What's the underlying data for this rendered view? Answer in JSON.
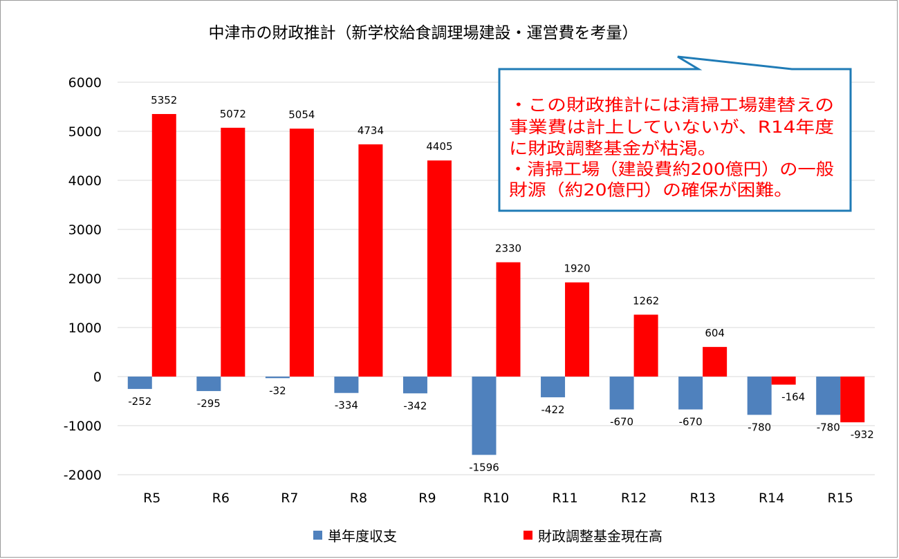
{
  "chart_data": {
    "type": "bar",
    "title": "中津市の財政推計（新学校給食調理場建設・運営費を考量）",
    "categories": [
      "R5",
      "R6",
      "R7",
      "R8",
      "R9",
      "R10",
      "R11",
      "R12",
      "R13",
      "R14",
      "R15"
    ],
    "series": [
      {
        "name": "単年度収支",
        "color": "#4f81bd",
        "values": [
          -252,
          -295,
          -32,
          -334,
          -342,
          -1596,
          -422,
          -670,
          -670,
          -780,
          -780
        ]
      },
      {
        "name": "財政調整基金現在高",
        "color": "#ff0000",
        "values": [
          5352,
          5072,
          5054,
          4734,
          4405,
          2330,
          1920,
          1262,
          604,
          -164,
          -932
        ]
      }
    ],
    "ylim": [
      -2000,
      6000
    ],
    "yticks": [
      6000,
      5000,
      4000,
      3000,
      2000,
      1000,
      0,
      -1000,
      -2000
    ],
    "grid": true,
    "legend": "bottom",
    "annotation": {
      "lines": [
        "・この財政推計には清掃工場建替えの",
        "事業費は計上していないが、R14年度",
        "に財政調整基金が枯渇。",
        "・清掃工場（建設費約200億円）の一般",
        "財源（約20億円）の確保が困難。"
      ],
      "text_color": "#ff0000",
      "border_color": "#1f7bb6"
    }
  }
}
